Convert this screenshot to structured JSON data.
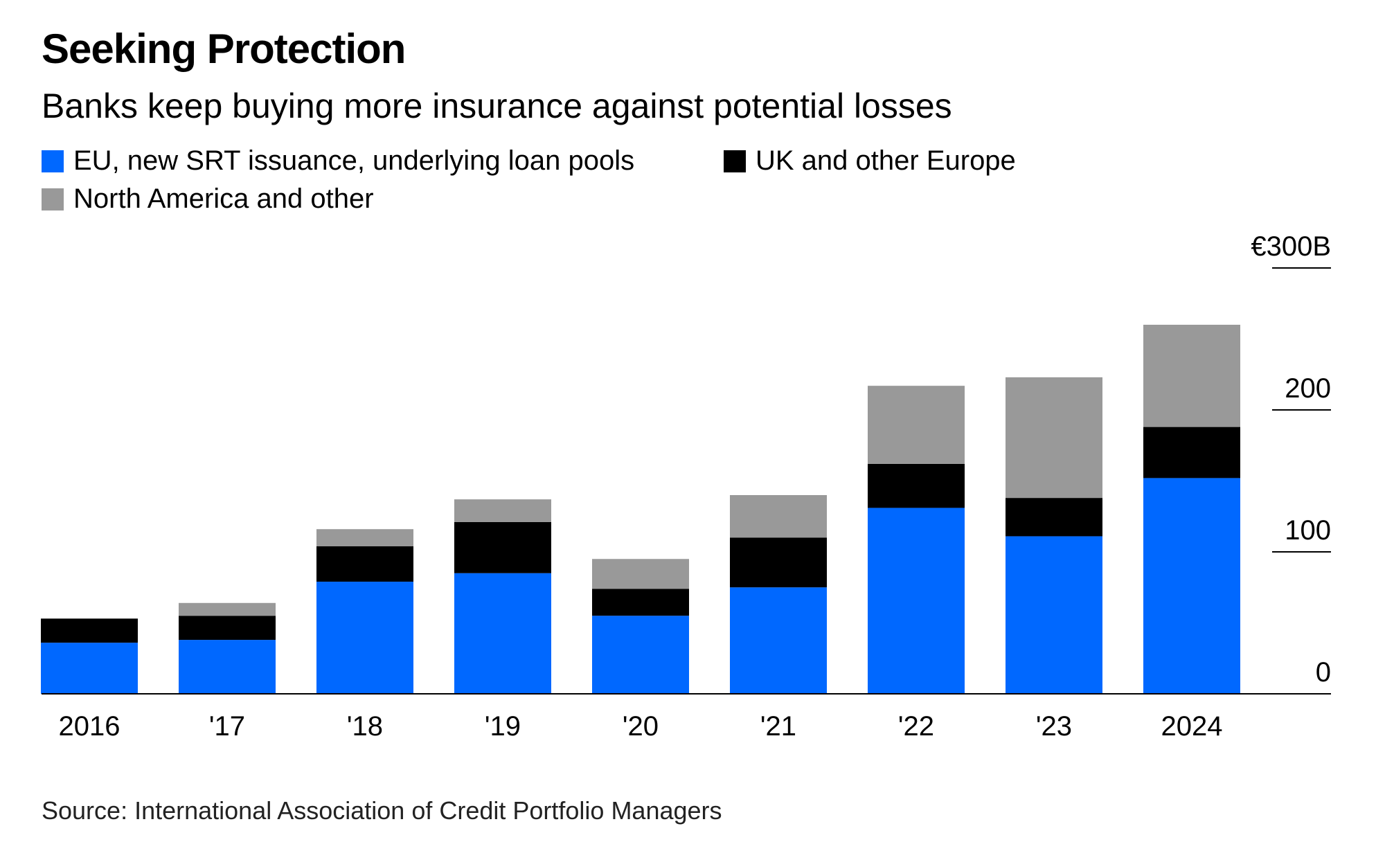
{
  "header": {
    "title": "Seeking Protection",
    "subtitle": "Banks keep buying more insurance against potential losses"
  },
  "legend": {
    "items": [
      {
        "label": "EU, new SRT issuance, underlying loan pools",
        "color": "#0068ff"
      },
      {
        "label": "UK and other Europe",
        "color": "#000000"
      },
      {
        "label": "North America and other",
        "color": "#999999"
      }
    ]
  },
  "chart_data": {
    "type": "bar",
    "stacked": true,
    "title": "Seeking Protection",
    "subtitle": "Banks keep buying more insurance against potential losses",
    "xlabel": "",
    "ylabel": "",
    "categories": [
      "2016",
      "'17",
      "'18",
      "'19",
      "'20",
      "'21",
      "'22",
      "'23",
      "2024"
    ],
    "series": [
      {
        "name": "EU, new SRT issuance, underlying loan pools",
        "color": "#0068ff",
        "values": [
          36,
          38,
          79,
          85,
          55,
          75,
          131,
          111,
          152
        ]
      },
      {
        "name": "UK and other Europe",
        "color": "#000000",
        "values": [
          17,
          17,
          25,
          36,
          19,
          35,
          31,
          27,
          36
        ]
      },
      {
        "name": "North America and other",
        "color": "#999999",
        "values": [
          0,
          9,
          12,
          16,
          21,
          30,
          55,
          85,
          72
        ]
      }
    ],
    "ylim": [
      0,
      300
    ],
    "yticks": [
      0,
      100,
      200,
      300
    ],
    "ytick_labels": [
      "0",
      "100",
      "200",
      "€300B"
    ],
    "grid": false,
    "legend_position": "top-left",
    "source": "Source: International Association of Credit Portfolio Managers"
  }
}
